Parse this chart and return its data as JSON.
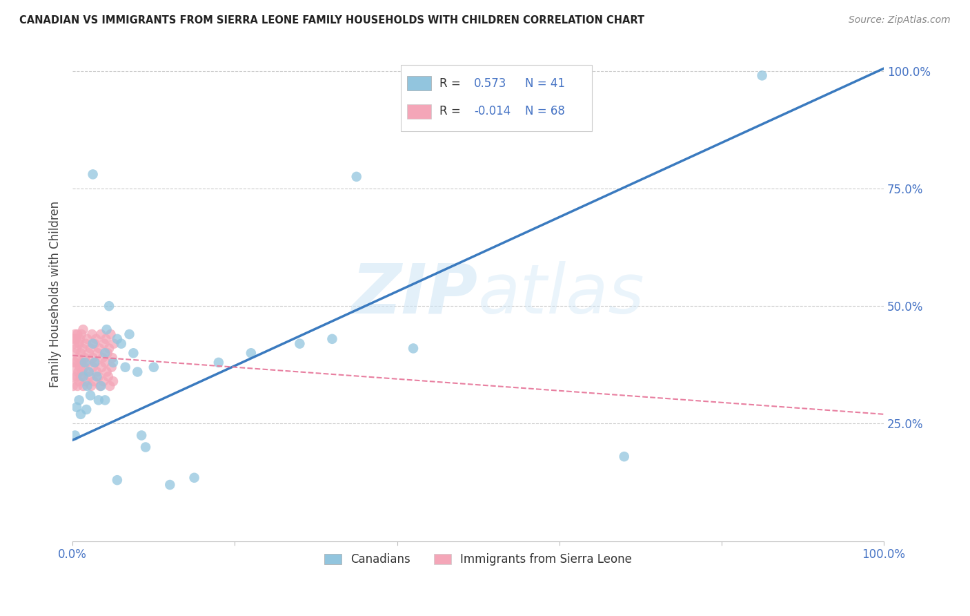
{
  "title": "CANADIAN VS IMMIGRANTS FROM SIERRA LEONE FAMILY HOUSEHOLDS WITH CHILDREN CORRELATION CHART",
  "source": "Source: ZipAtlas.com",
  "ylabel_label": "Family Households with Children",
  "legend_labels": [
    "Canadians",
    "Immigrants from Sierra Leone"
  ],
  "canadian_color": "#92c5de",
  "sierra_leone_color": "#f4a6b8",
  "trend_canadian_color": "#3a7abf",
  "trend_sierra_leone_color": "#e87fa0",
  "R_canadian": 0.573,
  "N_canadian": 41,
  "R_sierra_leone": -0.014,
  "N_sierra_leone": 68,
  "watermark_zip": "ZIP",
  "watermark_atlas": "atlas",
  "background_color": "#ffffff",
  "grid_color": "#cccccc",
  "canadian_x": [
    0.003,
    0.005,
    0.008,
    0.01,
    0.013,
    0.015,
    0.017,
    0.018,
    0.02,
    0.022,
    0.025,
    0.027,
    0.03,
    0.032,
    0.035,
    0.04,
    0.042,
    0.045,
    0.05,
    0.055,
    0.06,
    0.065,
    0.07,
    0.075,
    0.08,
    0.085,
    0.09,
    0.1,
    0.12,
    0.15,
    0.18,
    0.22,
    0.28,
    0.35,
    0.42,
    0.68,
    0.85,
    0.025,
    0.04,
    0.055,
    0.32
  ],
  "canadian_y": [
    0.225,
    0.285,
    0.3,
    0.27,
    0.35,
    0.38,
    0.28,
    0.33,
    0.36,
    0.31,
    0.42,
    0.38,
    0.35,
    0.3,
    0.33,
    0.4,
    0.45,
    0.5,
    0.38,
    0.43,
    0.42,
    0.37,
    0.44,
    0.4,
    0.36,
    0.225,
    0.2,
    0.37,
    0.12,
    0.135,
    0.38,
    0.4,
    0.42,
    0.775,
    0.41,
    0.18,
    0.99,
    0.78,
    0.3,
    0.13,
    0.43
  ],
  "sierra_leone_x": [
    0.0005,
    0.001,
    0.0015,
    0.002,
    0.002,
    0.0025,
    0.003,
    0.003,
    0.004,
    0.004,
    0.005,
    0.005,
    0.006,
    0.006,
    0.007,
    0.007,
    0.008,
    0.008,
    0.009,
    0.009,
    0.01,
    0.01,
    0.011,
    0.011,
    0.012,
    0.012,
    0.013,
    0.013,
    0.014,
    0.015,
    0.016,
    0.016,
    0.017,
    0.018,
    0.019,
    0.02,
    0.021,
    0.022,
    0.023,
    0.024,
    0.025,
    0.025,
    0.026,
    0.027,
    0.028,
    0.029,
    0.03,
    0.031,
    0.032,
    0.033,
    0.034,
    0.035,
    0.036,
    0.037,
    0.038,
    0.039,
    0.04,
    0.041,
    0.042,
    0.043,
    0.044,
    0.045,
    0.046,
    0.047,
    0.048,
    0.049,
    0.05,
    0.051
  ],
  "sierra_leone_y": [
    0.33,
    0.35,
    0.43,
    0.38,
    0.42,
    0.4,
    0.37,
    0.44,
    0.38,
    0.43,
    0.35,
    0.41,
    0.33,
    0.44,
    0.36,
    0.39,
    0.34,
    0.42,
    0.37,
    0.43,
    0.35,
    0.4,
    0.38,
    0.44,
    0.36,
    0.41,
    0.33,
    0.45,
    0.37,
    0.39,
    0.34,
    0.42,
    0.38,
    0.43,
    0.36,
    0.4,
    0.35,
    0.41,
    0.33,
    0.44,
    0.37,
    0.39,
    0.34,
    0.42,
    0.38,
    0.43,
    0.36,
    0.4,
    0.35,
    0.41,
    0.33,
    0.44,
    0.37,
    0.39,
    0.34,
    0.42,
    0.38,
    0.43,
    0.36,
    0.4,
    0.35,
    0.41,
    0.33,
    0.44,
    0.37,
    0.39,
    0.34,
    0.42
  ],
  "xlim": [
    0.0,
    1.0
  ],
  "ylim": [
    0.0,
    1.05
  ],
  "trend_ca_x0": 0.0,
  "trend_ca_y0": 0.215,
  "trend_ca_x1": 1.0,
  "trend_ca_y1": 1.005,
  "trend_sl_x0": 0.0,
  "trend_sl_y0": 0.395,
  "trend_sl_x1": 1.0,
  "trend_sl_y1": 0.27
}
